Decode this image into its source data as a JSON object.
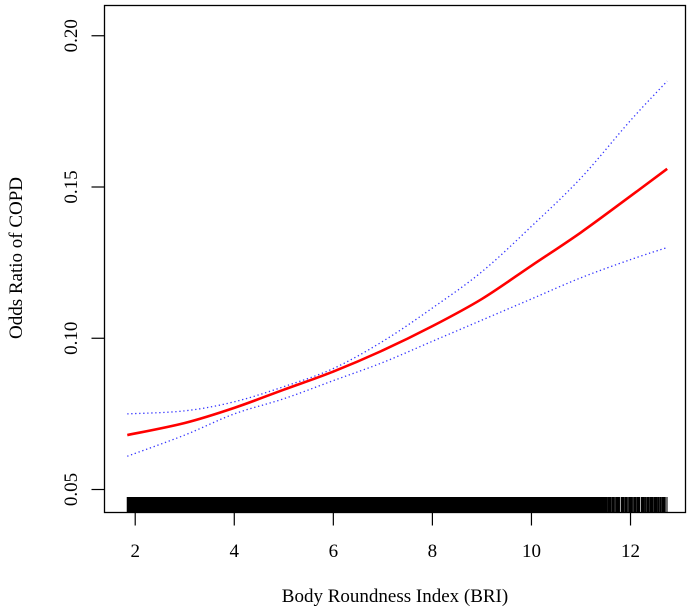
{
  "chart_data": {
    "type": "line",
    "title": "",
    "xlabel": "Body Roundness Index (BRI)",
    "ylabel": "Odds Ratio of COPD",
    "xlim": [
      1.38,
      13.11
    ],
    "ylim": [
      0.0424,
      0.21
    ],
    "xticks": [
      2,
      4,
      6,
      8,
      10,
      12
    ],
    "xtick_labels": [
      "2",
      "4",
      "6",
      "8",
      "10",
      "12"
    ],
    "yticks": [
      0.05,
      0.1,
      0.15,
      0.2
    ],
    "ytick_labels": [
      "0.05",
      "0.10",
      "0.15",
      "0.20"
    ],
    "grid": false,
    "x": [
      1.84,
      3,
      4,
      5,
      6,
      7,
      8,
      9,
      10,
      11,
      12,
      12.74
    ],
    "series": [
      {
        "name": "Odds ratio",
        "color": "#ff0000",
        "style": "solid",
        "values": [
          0.068,
          0.072,
          0.077,
          0.083,
          0.089,
          0.096,
          0.104,
          0.113,
          0.124,
          0.135,
          0.147,
          0.156
        ]
      },
      {
        "name": "Upper 95% CI",
        "color": "#3333ff",
        "style": "dotted",
        "values": [
          0.075,
          0.076,
          0.079,
          0.084,
          0.09,
          0.099,
          0.11,
          0.122,
          0.137,
          0.153,
          0.172,
          0.185
        ]
      },
      {
        "name": "Lower 95% CI",
        "color": "#3333ff",
        "style": "dotted",
        "values": [
          0.061,
          0.068,
          0.075,
          0.08,
          0.086,
          0.092,
          0.099,
          0.106,
          0.113,
          0.12,
          0.126,
          0.13
        ]
      }
    ],
    "rug_range": [
      1.84,
      12.74
    ]
  }
}
